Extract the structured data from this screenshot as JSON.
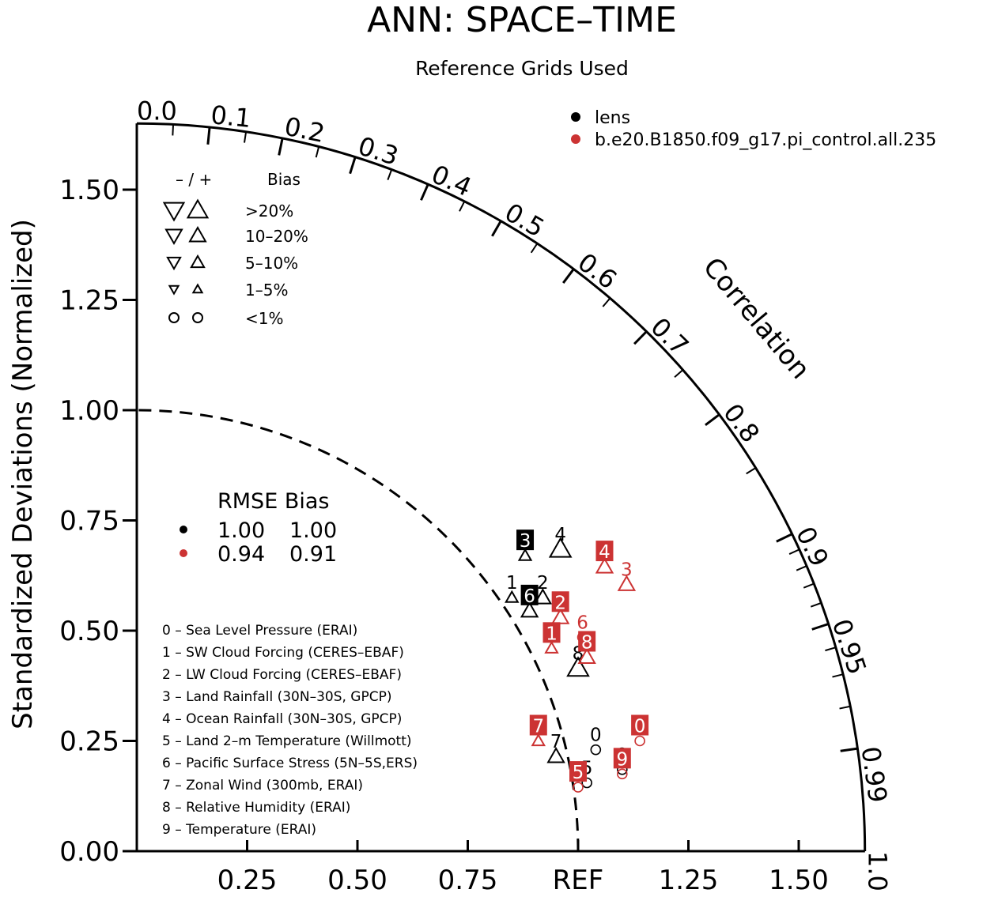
{
  "title": "ANN: SPACE–TIME",
  "subtitle": "Reference Grids Used",
  "colors": {
    "series1": "#000000",
    "series2": "#cc3333"
  },
  "legend_models": [
    {
      "name": "lens",
      "color": "#000000"
    },
    {
      "name": "b.e20.B1850.f09_g17.pi_control.all.235",
      "color": "#cc3333"
    }
  ],
  "bias_legend": {
    "header_sign": "– / +",
    "header_label": "Bias",
    "rows": [
      {
        "label": ">20%",
        "kind": "tri",
        "scale": 1.0
      },
      {
        "label": "10–20%",
        "kind": "tri",
        "scale": 0.8
      },
      {
        "label": "5–10%",
        "kind": "tri",
        "scale": 0.65
      },
      {
        "label": "1–5%",
        "kind": "tri",
        "scale": 0.45
      },
      {
        "label": "<1%",
        "kind": "circle",
        "scale": 0.5
      }
    ]
  },
  "rmse_legend": {
    "header": "RMSE Bias",
    "rows": [
      {
        "rmse": "1.00",
        "bias": "1.00",
        "color": "#000000"
      },
      {
        "rmse": "0.94",
        "bias": "0.91",
        "color": "#cc3333"
      }
    ]
  },
  "variables": [
    "0 – Sea Level Pressure (ERAI)",
    "1 – SW Cloud Forcing (CERES–EBAF)",
    "2 – LW Cloud Forcing (CERES–EBAF)",
    "3 – Land Rainfall (30N–30S, GPCP)",
    "4 – Ocean Rainfall (30N–30S, GPCP)",
    "5 – Land 2–m Temperature (Willmott)",
    "6 – Pacific Surface Stress (5N–5S,ERS)",
    "7 – Zonal Wind (300mb, ERAI)",
    "8 – Relative Humidity (ERAI)",
    "9 – Temperature (ERAI)"
  ],
  "chart_data": {
    "type": "scatter",
    "subtype": "taylor_diagram",
    "title": "ANN: SPACE–TIME",
    "subtitle": "Reference Grids Used",
    "ylabel": "Standardized Deviations (Normalized)",
    "arc_label": "Correlation",
    "ref_label": "REF",
    "max_std": 1.65,
    "std_ticks": [
      0.0,
      0.25,
      0.5,
      0.75,
      1.0,
      1.25,
      1.5
    ],
    "std_tick_labels": [
      "0.00",
      "0.25",
      "0.50",
      "0.75",
      "1.00",
      "1.25",
      "1.50"
    ],
    "x_tick_labels": [
      "0.25",
      "0.50",
      "0.75",
      "REF",
      "1.25",
      "1.50"
    ],
    "x_tick_values": [
      0.25,
      0.5,
      0.75,
      1.0,
      1.25,
      1.5
    ],
    "corr_ticks": [
      0.0,
      0.1,
      0.2,
      0.3,
      0.4,
      0.5,
      0.6,
      0.7,
      0.8,
      0.9,
      0.95,
      0.99,
      1.0
    ],
    "corr_tick_labels": [
      "0.0",
      "0.1",
      "0.2",
      "0.3",
      "0.4",
      "0.5",
      "0.6",
      "0.7",
      "0.8",
      "0.9",
      "0.95",
      "0.99",
      "1.0"
    ],
    "series": [
      {
        "name": "lens",
        "color": "#000000",
        "points": [
          {
            "id": "0",
            "x": 1.04,
            "y": 0.23,
            "marker": "circle",
            "label_style": "plain"
          },
          {
            "id": "1",
            "x": 0.85,
            "y": 0.575,
            "marker": "tri-up-small",
            "label_style": "plain"
          },
          {
            "id": "2",
            "x": 0.92,
            "y": 0.575,
            "marker": "tri-up",
            "label_style": "plain"
          },
          {
            "id": "3",
            "x": 0.88,
            "y": 0.67,
            "marker": "tri-up-small",
            "label_style": "box"
          },
          {
            "id": "4",
            "x": 0.96,
            "y": 0.685,
            "marker": "tri-up-large",
            "label_style": "plain"
          },
          {
            "id": "5",
            "x": 1.02,
            "y": 0.155,
            "marker": "circle",
            "label_style": "plain"
          },
          {
            "id": "6",
            "x": 0.89,
            "y": 0.545,
            "marker": "tri-up",
            "label_style": "box"
          },
          {
            "id": "7",
            "x": 0.95,
            "y": 0.215,
            "marker": "tri-up",
            "label_style": "plain"
          },
          {
            "id": "8",
            "x": 1.0,
            "y": 0.415,
            "marker": "tri-up-large",
            "label_style": "plain"
          },
          {
            "id": "9",
            "x": 1.1,
            "y": 0.185,
            "marker": "circle",
            "label_style": "plain"
          }
        ]
      },
      {
        "name": "b.e20.B1850.f09_g17.pi_control.all.235",
        "color": "#cc3333",
        "points": [
          {
            "id": "0",
            "x": 1.14,
            "y": 0.25,
            "marker": "circle",
            "label_style": "box"
          },
          {
            "id": "1",
            "x": 0.94,
            "y": 0.46,
            "marker": "tri-up-small",
            "label_style": "box"
          },
          {
            "id": "2",
            "x": 0.96,
            "y": 0.53,
            "marker": "tri-up",
            "label_style": "box"
          },
          {
            "id": "3",
            "x": 1.11,
            "y": 0.605,
            "marker": "tri-up",
            "label_style": "plain"
          },
          {
            "id": "4",
            "x": 1.06,
            "y": 0.645,
            "marker": "tri-up",
            "label_style": "box"
          },
          {
            "id": "5",
            "x": 1.0,
            "y": 0.145,
            "marker": "circle",
            "label_style": "box"
          },
          {
            "id": "6",
            "x": 1.01,
            "y": 0.485,
            "marker": "circle",
            "label_style": "plain"
          },
          {
            "id": "7",
            "x": 0.91,
            "y": 0.25,
            "marker": "tri-up-small",
            "label_style": "box"
          },
          {
            "id": "8",
            "x": 1.02,
            "y": 0.44,
            "marker": "tri-up",
            "label_style": "box"
          },
          {
            "id": "9",
            "x": 1.1,
            "y": 0.175,
            "marker": "circle",
            "label_style": "box"
          }
        ]
      }
    ]
  }
}
